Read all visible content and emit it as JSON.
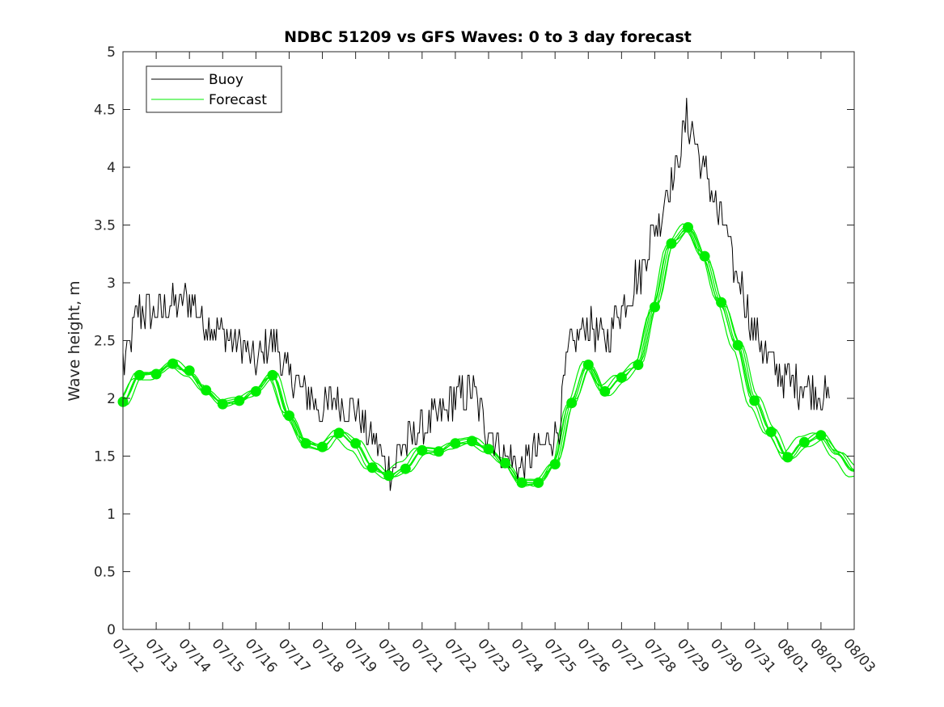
{
  "chart_data": {
    "type": "line",
    "title": "NDBC 51209 vs GFS Waves: 0 to 3 day forecast",
    "ylabel": "Wave height, m",
    "xlabel": "",
    "ylim": [
      0,
      5
    ],
    "yticks": [
      0,
      0.5,
      1,
      1.5,
      2,
      2.5,
      3,
      3.5,
      4,
      4.5,
      5
    ],
    "yticklabels": [
      "0",
      "0.5",
      "1",
      "1.5",
      "2",
      "2.5",
      "3",
      "3.5",
      "4",
      "4.5",
      "5"
    ],
    "xticklabels": [
      "07/12",
      "07/13",
      "07/14",
      "07/15",
      "07/16",
      "07/17",
      "07/18",
      "07/19",
      "07/20",
      "07/21",
      "07/22",
      "07/23",
      "07/24",
      "07/25",
      "07/26",
      "07/27",
      "07/28",
      "07/29",
      "07/30",
      "07/31",
      "08/01",
      "08/02",
      "08/03"
    ],
    "grid": false,
    "legend_position": "top-left",
    "colors": {
      "buoy": "#000000",
      "forecast": "#00ee00",
      "axes": "#262626"
    },
    "buoy_anchors": [
      [
        "07/12 00:00",
        2.3
      ],
      [
        "07/12 12:00",
        2.75
      ],
      [
        "07/13 00:00",
        2.75
      ],
      [
        "07/13 12:00",
        2.8
      ],
      [
        "07/14 00:00",
        2.85
      ],
      [
        "07/14 12:00",
        2.65
      ],
      [
        "07/15 00:00",
        2.55
      ],
      [
        "07/15 12:00",
        2.45
      ],
      [
        "07/16 00:00",
        2.3
      ],
      [
        "07/16 12:00",
        2.5
      ],
      [
        "07/17 00:00",
        2.2
      ],
      [
        "07/17 12:00",
        2.05
      ],
      [
        "07/18 00:00",
        1.9
      ],
      [
        "07/18 12:00",
        2.0
      ],
      [
        "07/19 00:00",
        1.9
      ],
      [
        "07/19 12:00",
        1.65
      ],
      [
        "07/20 00:00",
        1.4
      ],
      [
        "07/20 12:00",
        1.6
      ],
      [
        "07/21 00:00",
        1.75
      ],
      [
        "07/21 12:00",
        1.85
      ],
      [
        "07/22 00:00",
        2.0
      ],
      [
        "07/22 12:00",
        2.05
      ],
      [
        "07/23 00:00",
        1.75
      ],
      [
        "07/23 12:00",
        1.5
      ],
      [
        "07/24 00:00",
        1.4
      ],
      [
        "07/24 12:00",
        1.55
      ],
      [
        "07/25 00:00",
        1.7
      ],
      [
        "07/25 12:00",
        2.45
      ],
      [
        "07/26 00:00",
        2.65
      ],
      [
        "07/26 12:00",
        2.5
      ],
      [
        "07/27 00:00",
        2.8
      ],
      [
        "07/27 12:00",
        3.05
      ],
      [
        "07/28 00:00",
        3.45
      ],
      [
        "07/28 12:00",
        3.9
      ],
      [
        "07/29 00:00",
        4.4
      ],
      [
        "07/29 12:00",
        3.95
      ],
      [
        "07/30 00:00",
        3.55
      ],
      [
        "07/30 12:00",
        3.05
      ],
      [
        "07/31 00:00",
        2.6
      ],
      [
        "07/31 12:00",
        2.3
      ],
      [
        "08/01 00:00",
        2.15
      ],
      [
        "08/01 12:00",
        2.1
      ],
      [
        "08/02 00:00",
        2.05
      ],
      [
        "08/02 06:00",
        2.0
      ]
    ],
    "forecast_anchors": [
      [
        "07/12 00:00",
        1.97
      ],
      [
        "07/12 12:00",
        2.2
      ],
      [
        "07/13 00:00",
        2.21
      ],
      [
        "07/13 12:00",
        2.3
      ],
      [
        "07/14 00:00",
        2.22
      ],
      [
        "07/14 12:00",
        2.07
      ],
      [
        "07/15 00:00",
        1.96
      ],
      [
        "07/15 12:00",
        1.98
      ],
      [
        "07/16 00:00",
        2.06
      ],
      [
        "07/16 12:00",
        2.2
      ],
      [
        "07/17 00:00",
        1.85
      ],
      [
        "07/17 12:00",
        1.61
      ],
      [
        "07/18 00:00",
        1.58
      ],
      [
        "07/18 12:00",
        1.7
      ],
      [
        "07/19 00:00",
        1.6
      ],
      [
        "07/19 12:00",
        1.41
      ],
      [
        "07/20 00:00",
        1.33
      ],
      [
        "07/20 12:00",
        1.4
      ],
      [
        "07/21 00:00",
        1.55
      ],
      [
        "07/21 12:00",
        1.54
      ],
      [
        "07/22 00:00",
        1.61
      ],
      [
        "07/22 12:00",
        1.63
      ],
      [
        "07/23 00:00",
        1.56
      ],
      [
        "07/23 12:00",
        1.44
      ],
      [
        "07/24 00:00",
        1.27
      ],
      [
        "07/24 12:00",
        1.27
      ],
      [
        "07/25 00:00",
        1.43
      ],
      [
        "07/25 12:00",
        1.96
      ],
      [
        "07/26 00:00",
        2.29
      ],
      [
        "07/26 12:00",
        2.06
      ],
      [
        "07/27 00:00",
        2.18
      ],
      [
        "07/27 12:00",
        2.29
      ],
      [
        "07/28 00:00",
        2.79
      ],
      [
        "07/28 12:00",
        3.34
      ],
      [
        "07/29 00:00",
        3.48
      ],
      [
        "07/29 12:00",
        3.23
      ],
      [
        "07/30 00:00",
        2.83
      ],
      [
        "07/30 12:00",
        2.46
      ],
      [
        "07/31 00:00",
        1.98
      ],
      [
        "07/31 12:00",
        1.71
      ],
      [
        "08/01 00:00",
        1.49
      ],
      [
        "08/01 12:00",
        1.62
      ],
      [
        "08/02 00:00",
        1.68
      ],
      [
        "08/02 12:00",
        1.52
      ],
      [
        "08/03 00:00",
        1.37
      ]
    ],
    "forecast_markers": [
      [
        "07/12 00:00",
        1.97
      ],
      [
        "07/12 12:00",
        2.2
      ],
      [
        "07/13 00:00",
        2.21
      ],
      [
        "07/13 12:00",
        2.3
      ],
      [
        "07/14 00:00",
        2.24
      ],
      [
        "07/14 12:00",
        2.07
      ],
      [
        "07/15 00:00",
        1.95
      ],
      [
        "07/15 12:00",
        1.98
      ],
      [
        "07/16 00:00",
        2.06
      ],
      [
        "07/16 12:00",
        2.2
      ],
      [
        "07/17 00:00",
        1.85
      ],
      [
        "07/17 12:00",
        1.61
      ],
      [
        "07/18 00:00",
        1.58
      ],
      [
        "07/18 12:00",
        1.7
      ],
      [
        "07/19 00:00",
        1.61
      ],
      [
        "07/19 12:00",
        1.4
      ],
      [
        "07/20 00:00",
        1.33
      ],
      [
        "07/20 12:00",
        1.39
      ],
      [
        "07/21 00:00",
        1.55
      ],
      [
        "07/21 12:00",
        1.54
      ],
      [
        "07/22 00:00",
        1.61
      ],
      [
        "07/22 12:00",
        1.63
      ],
      [
        "07/23 00:00",
        1.56
      ],
      [
        "07/23 12:00",
        1.44
      ],
      [
        "07/24 00:00",
        1.27
      ],
      [
        "07/24 12:00",
        1.27
      ],
      [
        "07/25 00:00",
        1.43
      ],
      [
        "07/25 12:00",
        1.96
      ],
      [
        "07/26 00:00",
        2.29
      ],
      [
        "07/26 12:00",
        2.06
      ],
      [
        "07/27 00:00",
        2.18
      ],
      [
        "07/27 12:00",
        2.29
      ],
      [
        "07/28 00:00",
        2.79
      ],
      [
        "07/28 12:00",
        3.34
      ],
      [
        "07/29 00:00",
        3.48
      ],
      [
        "07/29 12:00",
        3.23
      ],
      [
        "07/30 00:00",
        2.83
      ],
      [
        "07/30 12:00",
        2.46
      ],
      [
        "07/31 00:00",
        1.98
      ],
      [
        "07/31 12:00",
        1.71
      ],
      [
        "08/01 00:00",
        1.49
      ],
      [
        "08/01 12:00",
        1.62
      ],
      [
        "08/02 00:00",
        1.68
      ]
    ],
    "series": [
      {
        "name": "Buoy",
        "color": "#000000"
      },
      {
        "name": "Forecast",
        "color": "#00ee00"
      }
    ]
  }
}
